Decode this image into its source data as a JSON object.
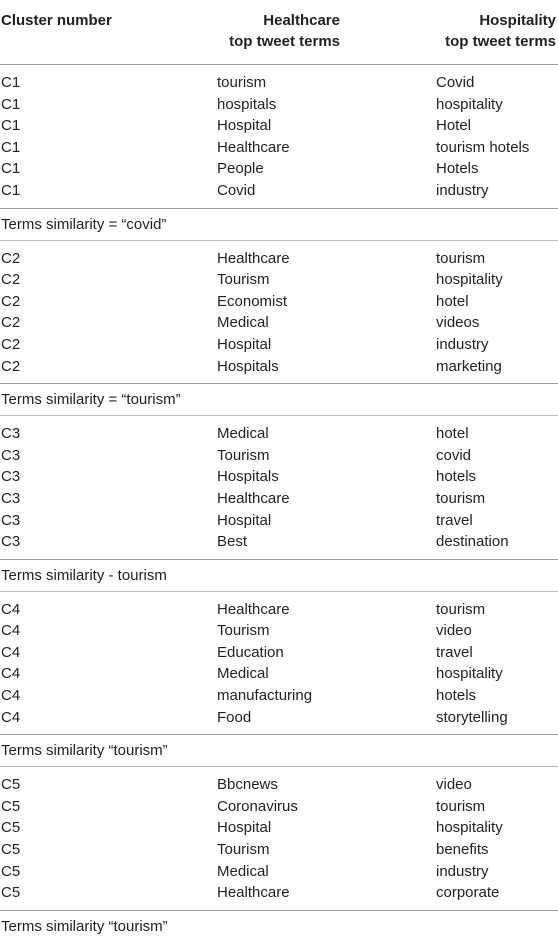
{
  "header": {
    "cluster_label": "Cluster number",
    "healthcare_line1": "Healthcare",
    "healthcare_line2": "top tweet terms",
    "hospitality_line1": "Hospitality",
    "hospitality_line2": "top tweet terms"
  },
  "groups": [
    {
      "rows": [
        {
          "cluster": "C1",
          "healthcare": "tourism",
          "hospitality": "Covid"
        },
        {
          "cluster": "C1",
          "healthcare": "hospitals",
          "hospitality": "hospitality"
        },
        {
          "cluster": "C1",
          "healthcare": "Hospital",
          "hospitality": "Hotel"
        },
        {
          "cluster": "C1",
          "healthcare": "Healthcare",
          "hospitality": "tourism hotels"
        },
        {
          "cluster": "C1",
          "healthcare": "People",
          "hospitality": "Hotels"
        },
        {
          "cluster": "C1",
          "healthcare": "Covid",
          "hospitality": "industry"
        }
      ],
      "note": "Terms similarity = “covid”"
    },
    {
      "rows": [
        {
          "cluster": "C2",
          "healthcare": "Healthcare",
          "hospitality": "tourism"
        },
        {
          "cluster": "C2",
          "healthcare": "Tourism",
          "hospitality": "hospitality"
        },
        {
          "cluster": "C2",
          "healthcare": "Economist",
          "hospitality": "hotel"
        },
        {
          "cluster": "C2",
          "healthcare": "Medical",
          "hospitality": "videos"
        },
        {
          "cluster": "C2",
          "healthcare": "Hospital",
          "hospitality": "industry"
        },
        {
          "cluster": "C2",
          "healthcare": "Hospitals",
          "hospitality": "marketing"
        }
      ],
      "note": "Terms similarity = “tourism”"
    },
    {
      "rows": [
        {
          "cluster": "C3",
          "healthcare": "Medical",
          "hospitality": "hotel"
        },
        {
          "cluster": "C3",
          "healthcare": "Tourism",
          "hospitality": "covid"
        },
        {
          "cluster": "C3",
          "healthcare": "Hospitals",
          "hospitality": "hotels"
        },
        {
          "cluster": "C3",
          "healthcare": "Healthcare",
          "hospitality": "tourism"
        },
        {
          "cluster": "C3",
          "healthcare": "Hospital",
          "hospitality": "travel"
        },
        {
          "cluster": "C3",
          "healthcare": "Best",
          "hospitality": "destination"
        }
      ],
      "note": "Terms similarity - tourism"
    },
    {
      "rows": [
        {
          "cluster": "C4",
          "healthcare": "Healthcare",
          "hospitality": "tourism"
        },
        {
          "cluster": "C4",
          "healthcare": "Tourism",
          "hospitality": "video"
        },
        {
          "cluster": "C4",
          "healthcare": "Education",
          "hospitality": "travel"
        },
        {
          "cluster": "C4",
          "healthcare": "Medical",
          "hospitality": "hospitality"
        },
        {
          "cluster": "C4",
          "healthcare": "manufacturing",
          "hospitality": "hotels"
        },
        {
          "cluster": "C4",
          "healthcare": "Food",
          "hospitality": "storytelling"
        }
      ],
      "note": "Terms similarity “tourism”"
    },
    {
      "rows": [
        {
          "cluster": "C5",
          "healthcare": "Bbcnews",
          "hospitality": "video"
        },
        {
          "cluster": "C5",
          "healthcare": "Coronavirus",
          "hospitality": "tourism"
        },
        {
          "cluster": "C5",
          "healthcare": "Hospital",
          "hospitality": "hospitality"
        },
        {
          "cluster": "C5",
          "healthcare": "Tourism",
          "hospitality": "benefits"
        },
        {
          "cluster": "C5",
          "healthcare": "Medical",
          "hospitality": "industry"
        },
        {
          "cluster": "C5",
          "healthcare": "Healthcare",
          "hospitality": "corporate"
        }
      ],
      "note": "Terms similarity “tourism”"
    }
  ]
}
